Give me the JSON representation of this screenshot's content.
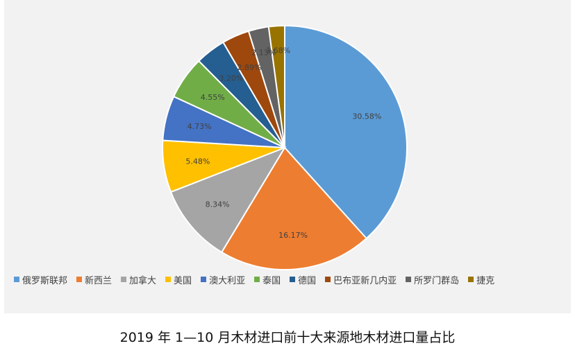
{
  "caption": "2019 年 1—10 月木材进口前十大来源地木材进口量占比",
  "chart_data": {
    "type": "pie",
    "title": "2019 年 1—10 月木材进口前十大来源地木材进口量占比",
    "legend_position": "bottom",
    "slices": [
      {
        "name": "俄罗斯联邦",
        "value": 30.58,
        "label": "30.58%",
        "color": "#5b9bd5"
      },
      {
        "name": "新西兰",
        "value": 16.17,
        "label": "16.17%",
        "color": "#ed7d31"
      },
      {
        "name": "加拿大",
        "value": 8.34,
        "label": "8.34%",
        "color": "#a5a5a5"
      },
      {
        "name": "美国",
        "value": 5.48,
        "label": "5.48%",
        "color": "#ffc000"
      },
      {
        "name": "澳大利亚",
        "value": 4.73,
        "label": "4.73%",
        "color": "#4472c4"
      },
      {
        "name": "泰国",
        "value": 4.55,
        "label": "4.55%",
        "color": "#70ad47"
      },
      {
        "name": "德国",
        "value": 3.2,
        "label": "3.20%",
        "color": "#255e91"
      },
      {
        "name": "巴布亚新几内亚",
        "value": 2.89,
        "label": "2.89%",
        "color": "#9e480e"
      },
      {
        "name": "所罗门群岛",
        "value": 2.13,
        "label": "2.13%",
        "color": "#636363"
      },
      {
        "name": "捷克",
        "value": 1.68,
        "label": "1.68%",
        "color": "#997300"
      }
    ]
  }
}
